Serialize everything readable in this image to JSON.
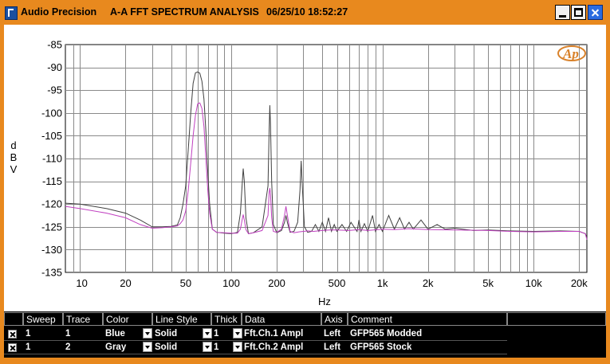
{
  "window": {
    "app_name": "Audio Precision",
    "title": "A-A FFT SPECTRUM ANALYSIS",
    "datetime": "06/25/10 18:52:27",
    "buttons": [
      "minimize",
      "maximize",
      "close"
    ]
  },
  "colors": {
    "title_bar": "#e8891e",
    "trace_blue_display": "#c040c0",
    "trace_gray_display": "#404040"
  },
  "logo_text": "AP",
  "chart_data": {
    "type": "line",
    "xlabel": "Hz",
    "ylabel": "dBV",
    "ylabel_chars": [
      "d",
      "B",
      "V"
    ],
    "x_scale": "log",
    "xlim": [
      8,
      22500
    ],
    "ylim": [
      -135,
      -85
    ],
    "grid": true,
    "x_ticks": [
      {
        "v": 10,
        "t": "10"
      },
      {
        "v": 20,
        "t": "20"
      },
      {
        "v": 50,
        "t": "50"
      },
      {
        "v": 100,
        "t": "100"
      },
      {
        "v": 200,
        "t": "200"
      },
      {
        "v": 500,
        "t": "500"
      },
      {
        "v": 1000,
        "t": "1k"
      },
      {
        "v": 2000,
        "t": "2k"
      },
      {
        "v": 5000,
        "t": "5k"
      },
      {
        "v": 10000,
        "t": "10k"
      },
      {
        "v": 20000,
        "t": "20k"
      }
    ],
    "y_ticks": [
      -85,
      -90,
      -95,
      -100,
      -105,
      -110,
      -115,
      -120,
      -125,
      -130,
      -135
    ],
    "series": [
      {
        "name": "GFP565 Modded",
        "x": [
          8,
          10,
          15,
          20,
          25,
          30,
          35,
          40,
          44,
          46,
          48,
          50,
          52,
          54,
          56,
          58,
          60,
          62,
          64,
          66,
          68,
          70,
          72,
          75,
          80,
          90,
          100,
          110,
          115,
          118,
          120,
          122,
          125,
          130,
          140,
          160,
          175,
          178,
          180,
          182,
          185,
          190,
          200,
          215,
          225,
          230,
          235,
          245,
          260,
          280,
          300,
          320,
          350,
          400,
          450,
          500,
          600,
          700,
          800,
          1000,
          1200,
          1500,
          2000,
          3000,
          5000,
          7000,
          10000,
          15000,
          20000,
          22000,
          22500
        ],
        "y": [
          -120.5,
          -121,
          -122,
          -123,
          -124.5,
          -125.3,
          -125.2,
          -125.0,
          -124.8,
          -124.3,
          -123.5,
          -121.5,
          -117,
          -111,
          -105,
          -100.5,
          -98,
          -97.8,
          -99,
          -103,
          -110,
          -117,
          -122,
          -125.5,
          -126.2,
          -126.3,
          -126.4,
          -126.4,
          -125.5,
          -123.5,
          -122.3,
          -123.5,
          -125.6,
          -126.5,
          -126.3,
          -125.8,
          -122.5,
          -117.5,
          -116.5,
          -118,
          -123,
          -126,
          -126.2,
          -125.5,
          -122.5,
          -120.5,
          -122.5,
          -126,
          -126.3,
          -126.1,
          -126.0,
          -125.9,
          -126.0,
          -125.8,
          -125.7,
          -125.7,
          -125.8,
          -125.6,
          -125.8,
          -125.5,
          -125.6,
          -125.4,
          -125.6,
          -125.7,
          -125.8,
          -126.0,
          -126.1,
          -126.0,
          -126.0,
          -126.5,
          -127.8
        ]
      },
      {
        "name": "GFP565 Stock",
        "x": [
          8,
          10,
          15,
          20,
          25,
          30,
          35,
          40,
          44,
          46,
          48,
          50,
          52,
          54,
          56,
          58,
          60,
          62,
          64,
          66,
          68,
          70,
          72,
          75,
          80,
          90,
          100,
          110,
          115,
          118,
          120,
          122,
          125,
          130,
          140,
          160,
          175,
          178,
          180,
          182,
          185,
          190,
          200,
          215,
          225,
          230,
          235,
          245,
          260,
          275,
          285,
          290,
          295,
          305,
          320,
          340,
          360,
          380,
          400,
          420,
          440,
          460,
          480,
          500,
          540,
          580,
          620,
          680,
          700,
          720,
          760,
          800,
          860,
          900,
          950,
          1000,
          1100,
          1200,
          1300,
          1400,
          1500,
          1600,
          1800,
          2000,
          2300,
          2600,
          3000,
          4000,
          5000,
          7000,
          10000,
          15000,
          20000,
          22000,
          22500
        ],
        "y": [
          -119.8,
          -120,
          -121,
          -122,
          -123.5,
          -125.0,
          -125.0,
          -124.9,
          -124.6,
          -123,
          -120,
          -116,
          -108,
          -100,
          -93.5,
          -91.2,
          -91,
          -91.3,
          -93,
          -97,
          -104,
          -113,
          -120,
          -125.5,
          -126.2,
          -126.4,
          -126.5,
          -126.2,
          -122,
          -116,
          -112.2,
          -115,
          -123,
          -126.5,
          -126.3,
          -125,
          -116,
          -104,
          -98.3,
          -103,
          -115,
          -124.5,
          -126.3,
          -125.8,
          -124,
          -122.5,
          -124,
          -126.2,
          -126.0,
          -124,
          -117,
          -110.5,
          -116,
          -125,
          -126.2,
          -126.0,
          -124.5,
          -126.0,
          -124,
          -126.0,
          -123,
          -126.0,
          -124.5,
          -126.0,
          -124.5,
          -126.0,
          -124,
          -126.0,
          -123.5,
          -126,
          -124.3,
          -126,
          -122.5,
          -126,
          -124.5,
          -126,
          -122.5,
          -125.5,
          -123,
          -125.5,
          -124,
          -125.5,
          -123.5,
          -125.5,
          -124.5,
          -125.5,
          -125.3,
          -125.8,
          -125.7,
          -125.9,
          -126.0,
          -125.9,
          -126.0,
          -126.5,
          -127.5
        ]
      }
    ]
  },
  "table": {
    "headers": [
      "Sweep",
      "Trace",
      "Color",
      "Line Style",
      "Thick",
      "Data",
      "Axis",
      "Comment"
    ],
    "rows": [
      {
        "checked": true,
        "sweep": "1",
        "trace": "1",
        "color": "Blue",
        "line_style": "Solid",
        "thick": "1",
        "data": "Fft.Ch.1 Ampl",
        "axis": "Left",
        "comment": "GFP565 Modded"
      },
      {
        "checked": true,
        "sweep": "1",
        "trace": "2",
        "color": "Gray",
        "line_style": "Solid",
        "thick": "1",
        "data": "Fft.Ch.2 Ampl",
        "axis": "Left",
        "comment": "GFP565 Stock"
      }
    ]
  }
}
